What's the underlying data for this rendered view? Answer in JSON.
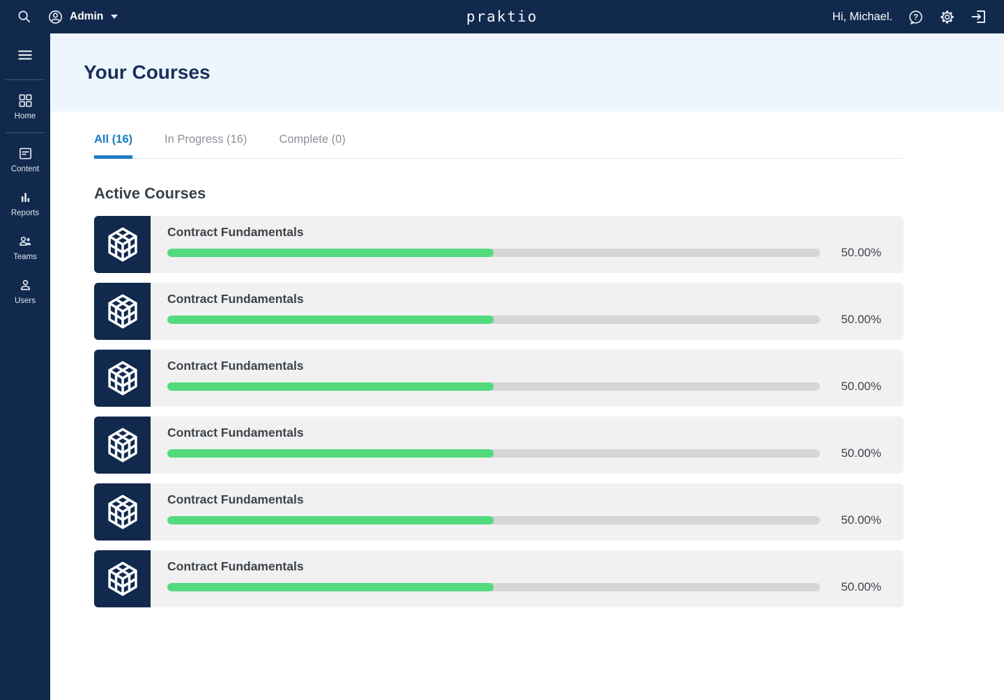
{
  "colors": {
    "navy": "#12294e",
    "hero_blue": "#eef6fd",
    "accent_blue": "#1a7dc4",
    "progress_green": "#53da7d",
    "progress_track": "#d6d6d6",
    "card_bg": "#f1f1f1",
    "text_dark": "#3c434b",
    "title_navy": "#19305a"
  },
  "icons": {
    "search-icon": "magnifier",
    "user-circle-icon": "person in circle",
    "caret-down-icon": "filled triangle",
    "help-icon": "question mark in bubble",
    "gear-icon": "settings cog",
    "logout-icon": "arrow into bracket",
    "menu-icon": "hamburger",
    "grid-icon": "four squares",
    "article-icon": "document with lines",
    "bar-chart-icon": "three bars",
    "people-icon": "two persons",
    "person-icon": "single person",
    "cube-icon": "wireframe 3d cube"
  },
  "topbar": {
    "admin_label": "Admin",
    "logo": "praktio",
    "greeting": "Hi, Michael."
  },
  "sidebar": {
    "items": [
      {
        "label": "Home",
        "icon": "grid-icon"
      },
      {
        "label": "Content",
        "icon": "article-icon"
      },
      {
        "label": "Reports",
        "icon": "bar-chart-icon"
      },
      {
        "label": "Teams",
        "icon": "people-icon"
      },
      {
        "label": "Users",
        "icon": "person-icon"
      }
    ]
  },
  "page": {
    "title": "Your Courses",
    "section_title": "Active Courses"
  },
  "tabs": [
    {
      "label": "All (16)",
      "active": true
    },
    {
      "label": "In Progress (16)",
      "active": false
    },
    {
      "label": "Complete (0)",
      "active": false
    }
  ],
  "courses": [
    {
      "title": "Contract Fundamentals",
      "progress_percent": 50,
      "progress_label": "50.00%"
    },
    {
      "title": "Contract Fundamentals",
      "progress_percent": 50,
      "progress_label": "50.00%"
    },
    {
      "title": "Contract Fundamentals",
      "progress_percent": 50,
      "progress_label": "50.00%"
    },
    {
      "title": "Contract Fundamentals",
      "progress_percent": 50,
      "progress_label": "50.00%"
    },
    {
      "title": "Contract Fundamentals",
      "progress_percent": 50,
      "progress_label": "50.00%"
    },
    {
      "title": "Contract Fundamentals",
      "progress_percent": 50,
      "progress_label": "50.00%"
    }
  ]
}
